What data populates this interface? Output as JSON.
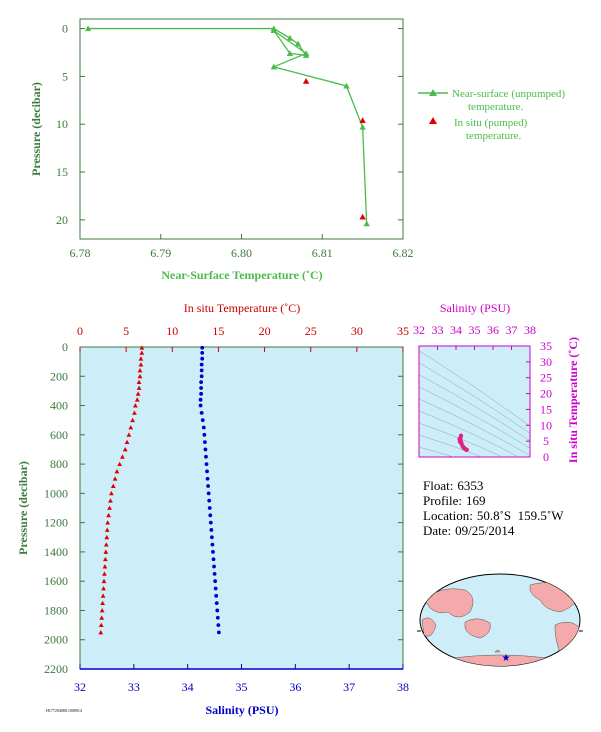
{
  "colors": {
    "top_axis": "#3c7a3c",
    "near_surface": "#4cbb4c",
    "in_situ": "#e00000",
    "salinity": "#0000c8",
    "temp_axis": "#cc0000",
    "magenta": "#cc00cc",
    "plot_bg": "#cdeef8",
    "land": "#f4aaaa",
    "ocean": "#cdeef8"
  },
  "chart_data": [
    {
      "type": "line",
      "xlabel": "Near-Surface Temperature (˚C)",
      "ylabel": "Pressure (decibar)",
      "xlim": [
        6.78,
        6.82
      ],
      "ylim": [
        22,
        -1
      ],
      "xticks": [
        "6.78",
        "6.79",
        "6.80",
        "6.81",
        "6.82"
      ],
      "yticks": [
        "0",
        "5",
        "10",
        "15",
        "20"
      ],
      "series": [
        {
          "name": "Near-surface (unpumped) temperature.",
          "points": [
            [
              6.781,
              0.0
            ],
            [
              6.804,
              0.0
            ],
            [
              6.806,
              1.0
            ],
            [
              6.807,
              1.6
            ],
            [
              6.808,
              2.8
            ],
            [
              6.806,
              2.6
            ],
            [
              6.804,
              0.2
            ],
            [
              6.808,
              2.6
            ],
            [
              6.804,
              4.0
            ],
            [
              6.813,
              6.0
            ],
            [
              6.815,
              10.3
            ],
            [
              6.8155,
              20.4
            ]
          ]
        },
        {
          "name": "In situ (pumped) temperature.",
          "points": [
            [
              6.808,
              5.5
            ],
            [
              6.815,
              9.6
            ],
            [
              6.815,
              19.7
            ]
          ]
        }
      ]
    },
    {
      "type": "scatter",
      "ylabel": "Pressure (decibar)",
      "top_xlabel": "In situ Temperature (˚C)",
      "bottom_xlabel": "Salinity (PSU)",
      "temp_lim": [
        0,
        35
      ],
      "sal_lim": [
        32,
        38
      ],
      "ylim": [
        2200,
        0
      ],
      "temp_ticks": [
        "0",
        "5",
        "10",
        "15",
        "20",
        "25",
        "30",
        "35"
      ],
      "sal_ticks": [
        "32",
        "33",
        "34",
        "35",
        "36",
        "37",
        "38"
      ],
      "yticks": [
        "0",
        "200",
        "400",
        "600",
        "800",
        "1000",
        "1200",
        "1400",
        "1600",
        "1800",
        "2000",
        "2200"
      ],
      "temperature": [
        [
          6.7,
          5
        ],
        [
          6.7,
          40
        ],
        [
          6.6,
          80
        ],
        [
          6.6,
          120
        ],
        [
          6.5,
          160
        ],
        [
          6.5,
          200
        ],
        [
          6.4,
          240
        ],
        [
          6.4,
          280
        ],
        [
          6.3,
          320
        ],
        [
          6.2,
          360
        ],
        [
          6.0,
          400
        ],
        [
          5.9,
          450
        ],
        [
          5.7,
          500
        ],
        [
          5.5,
          550
        ],
        [
          5.3,
          600
        ],
        [
          5.1,
          650
        ],
        [
          4.9,
          700
        ],
        [
          4.6,
          750
        ],
        [
          4.3,
          800
        ],
        [
          4.0,
          850
        ],
        [
          3.8,
          900
        ],
        [
          3.6,
          950
        ],
        [
          3.4,
          1000
        ],
        [
          3.3,
          1050
        ],
        [
          3.2,
          1100
        ],
        [
          3.1,
          1150
        ],
        [
          3.0,
          1200
        ],
        [
          2.95,
          1250
        ],
        [
          2.9,
          1300
        ],
        [
          2.85,
          1350
        ],
        [
          2.8,
          1400
        ],
        [
          2.75,
          1450
        ],
        [
          2.7,
          1500
        ],
        [
          2.65,
          1550
        ],
        [
          2.6,
          1600
        ],
        [
          2.55,
          1650
        ],
        [
          2.5,
          1700
        ],
        [
          2.45,
          1750
        ],
        [
          2.4,
          1800
        ],
        [
          2.35,
          1850
        ],
        [
          2.3,
          1900
        ],
        [
          2.25,
          1950
        ]
      ],
      "salinity": [
        [
          34.27,
          5
        ],
        [
          34.27,
          40
        ],
        [
          34.27,
          80
        ],
        [
          34.26,
          120
        ],
        [
          34.26,
          160
        ],
        [
          34.26,
          200
        ],
        [
          34.25,
          240
        ],
        [
          34.25,
          280
        ],
        [
          34.25,
          320
        ],
        [
          34.24,
          360
        ],
        [
          34.24,
          400
        ],
        [
          34.26,
          450
        ],
        [
          34.28,
          500
        ],
        [
          34.3,
          550
        ],
        [
          34.31,
          600
        ],
        [
          34.32,
          650
        ],
        [
          34.33,
          700
        ],
        [
          34.34,
          750
        ],
        [
          34.35,
          800
        ],
        [
          34.36,
          850
        ],
        [
          34.37,
          900
        ],
        [
          34.38,
          950
        ],
        [
          34.39,
          1000
        ],
        [
          34.4,
          1050
        ],
        [
          34.41,
          1100
        ],
        [
          34.42,
          1150
        ],
        [
          34.43,
          1200
        ],
        [
          34.44,
          1250
        ],
        [
          34.45,
          1300
        ],
        [
          34.46,
          1350
        ],
        [
          34.47,
          1400
        ],
        [
          34.48,
          1450
        ],
        [
          34.49,
          1500
        ],
        [
          34.5,
          1550
        ],
        [
          34.51,
          1600
        ],
        [
          34.52,
          1650
        ],
        [
          34.53,
          1700
        ],
        [
          34.54,
          1750
        ],
        [
          34.55,
          1800
        ],
        [
          34.56,
          1850
        ],
        [
          34.57,
          1900
        ],
        [
          34.58,
          1950
        ]
      ]
    },
    {
      "type": "scatter",
      "top_xlabel": "Salinity (PSU)",
      "right_ylabel": "In situ Temperature (˚C)",
      "xlim": [
        32,
        38
      ],
      "ylim": [
        0,
        35
      ],
      "xticks": [
        "32",
        "33",
        "34",
        "35",
        "36",
        "37",
        "38"
      ],
      "yticks": [
        "0",
        "5",
        "10",
        "15",
        "20",
        "25",
        "30",
        "35"
      ],
      "grid": true,
      "points": [
        [
          34.24,
          6.0
        ],
        [
          34.26,
          5.0
        ],
        [
          34.3,
          4.2
        ],
        [
          34.36,
          3.4
        ],
        [
          34.42,
          2.9
        ],
        [
          34.48,
          2.6
        ],
        [
          34.53,
          2.4
        ],
        [
          34.58,
          2.25
        ],
        [
          34.27,
          6.7
        ],
        [
          34.2,
          5.6
        ],
        [
          34.22,
          4.8
        ]
      ]
    }
  ],
  "info": {
    "float_label": "Float:",
    "float_value": "6353",
    "profile_label": "Profile:",
    "profile_value": "169",
    "location_label": "Location:",
    "location_value": "50.8˚S  159.5˚W",
    "date_label": "Date:",
    "date_value": "09/25/2014"
  },
  "footer_code": "H177294088.1008914"
}
